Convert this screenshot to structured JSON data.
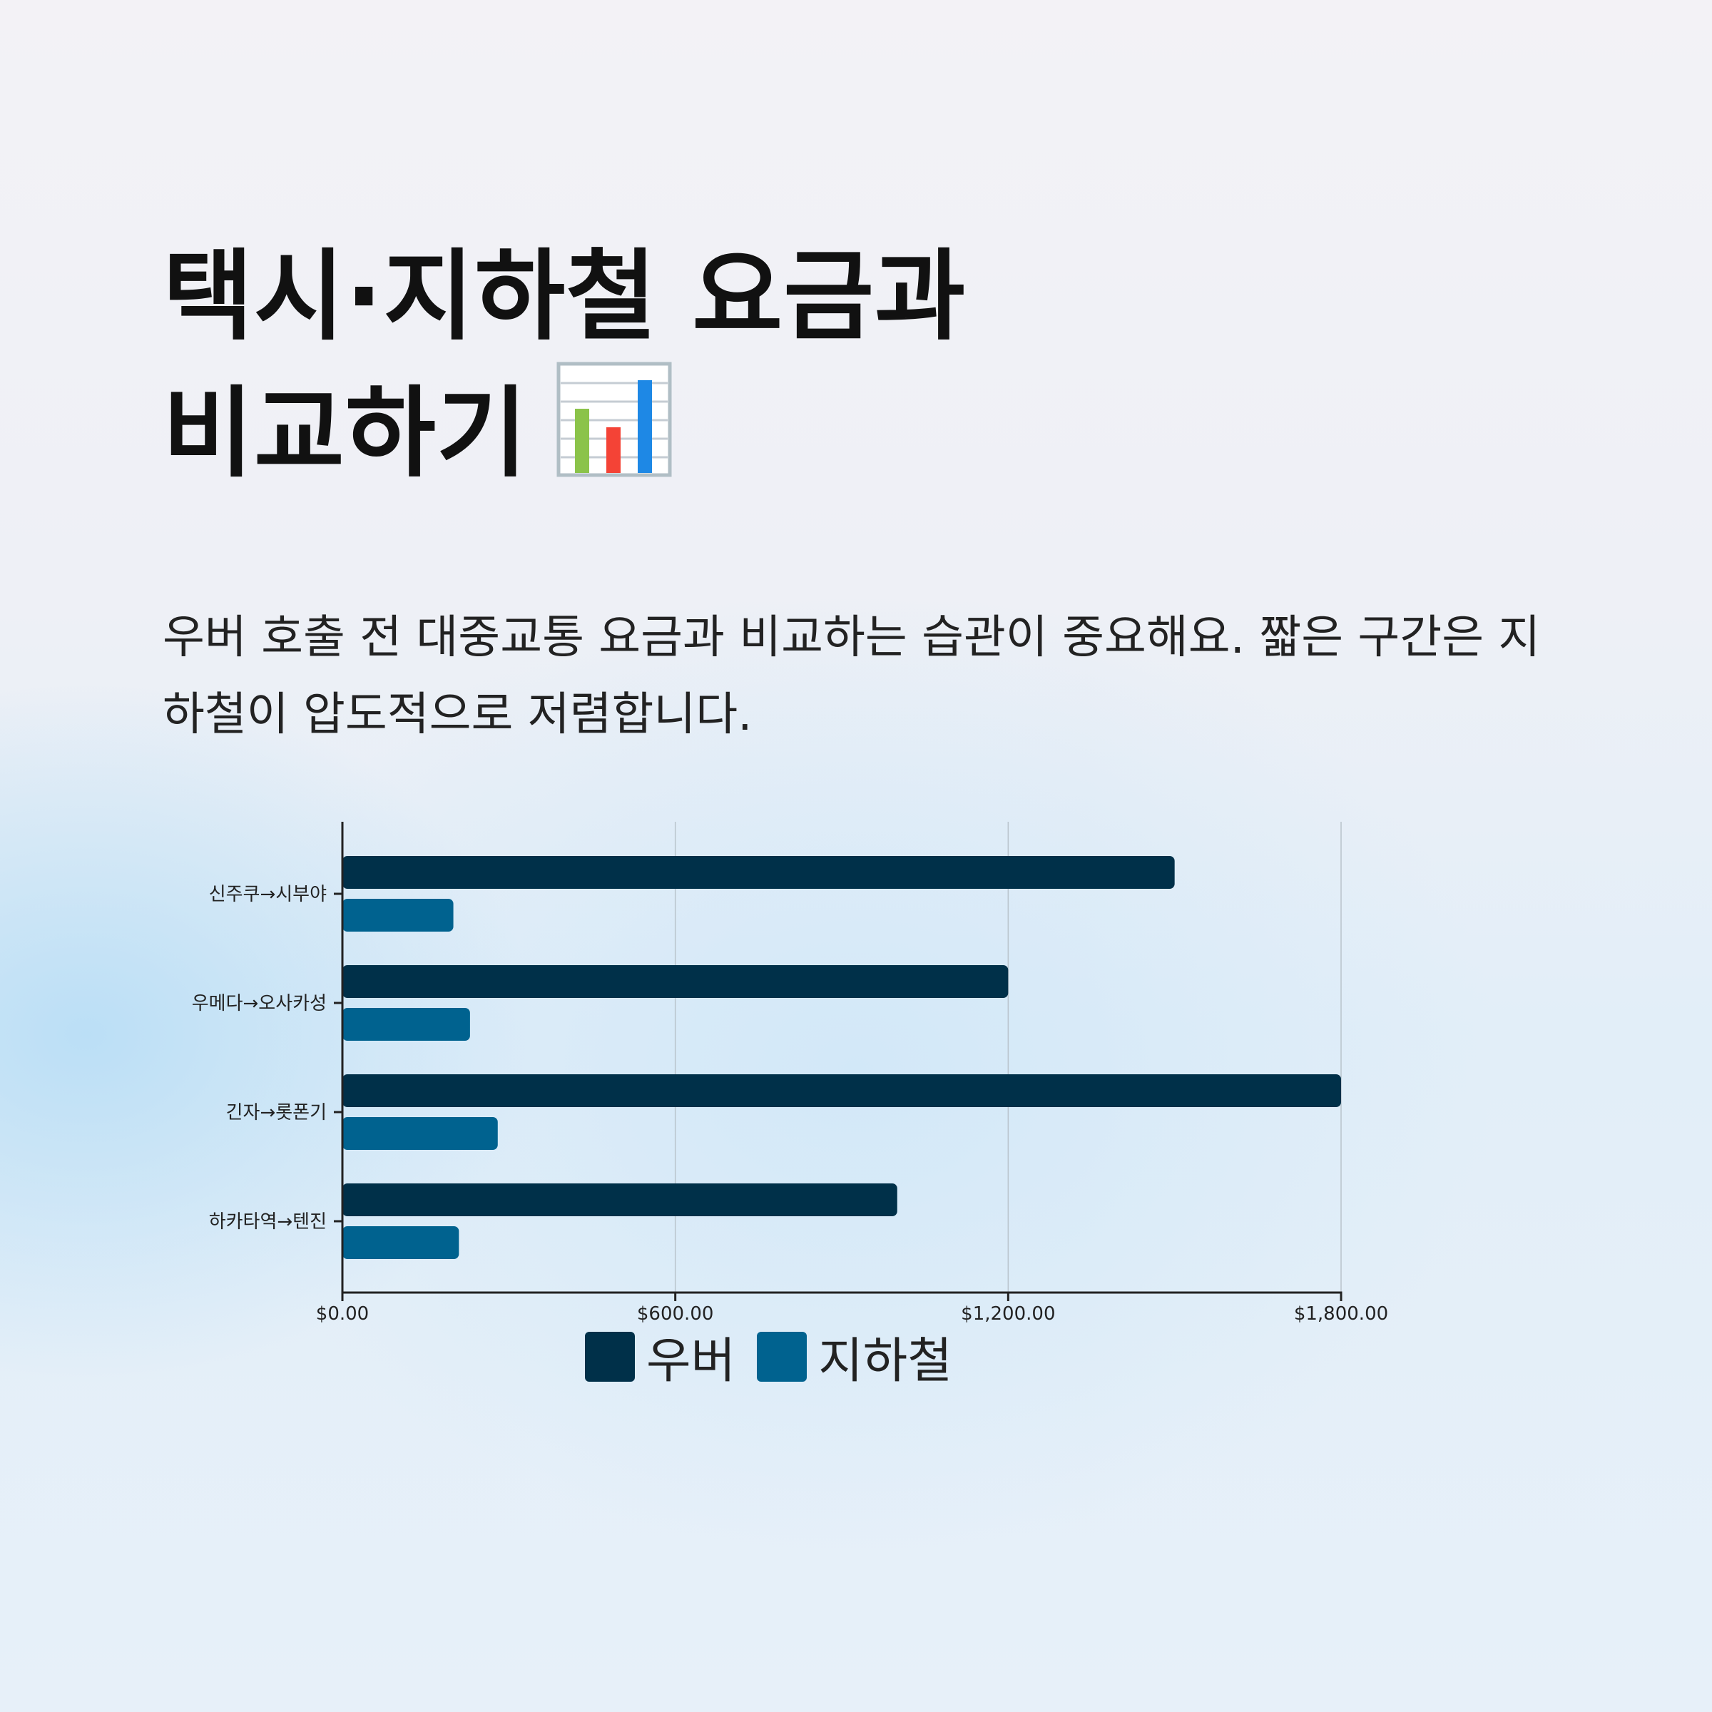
{
  "title": {
    "line1": "택시·지하철 요금과",
    "line2": "비교하기"
  },
  "title_icon": "bar-chart-emoji",
  "description": "우버 호출 전 대중교통 요금과 비교하는 습관이 중요해요. 짧은 구간은 지하철이 압도적으로 저렴합니다.",
  "chart_data": {
    "type": "bar",
    "orientation": "horizontal",
    "categories": [
      "신주쿠→시부야",
      "우메다→오사카성",
      "긴자→롯폰기",
      "하카타역→텐진"
    ],
    "series": [
      {
        "name": "우버",
        "values": [
          1500,
          1200,
          1800,
          1000
        ],
        "color": "#003049"
      },
      {
        "name": "지하철",
        "values": [
          200,
          230,
          280,
          210
        ],
        "color": "#00628f"
      }
    ],
    "xlim": [
      0,
      1800
    ],
    "xticks": [
      0,
      600,
      1200,
      1800
    ],
    "xtick_labels": [
      "$0.00",
      "$600.00",
      "$1,200.00",
      "$1,800.00"
    ],
    "grid": "vertical",
    "legend_position": "bottom"
  }
}
